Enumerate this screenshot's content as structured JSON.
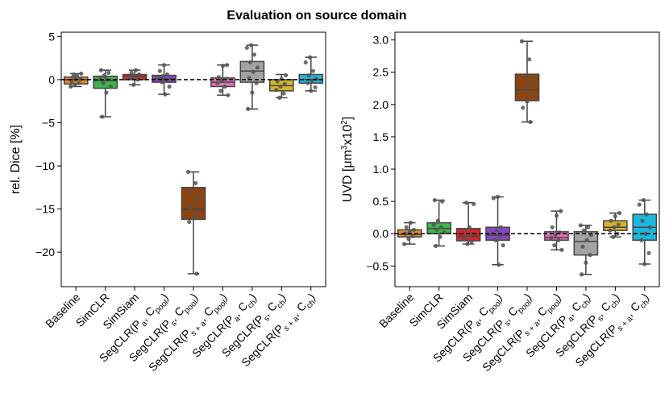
{
  "figure": {
    "title": "Evaluation on source domain",
    "colors": {
      "Baseline": "#e08a2c",
      "SimCLR": "#3db64a",
      "SimSiam": "#d9242a",
      "SegCLR(Pa,Cpool)": "#8a45c4",
      "SegCLR(Ps,Cpool)": "#8c4410",
      "SegCLR(Ps+a,Cpool)": "#e56fb8",
      "SegCLR(Pa,Cch)": "#a3a3a3",
      "SegCLR(Ps,Cch)": "#d6b42a",
      "SegCLR(Ps+a,Cch)": "#1cb7dd"
    }
  },
  "chart_data": [
    {
      "type": "boxplot",
      "title": "",
      "xlabel": "",
      "ylabel": "rel. Dice [%]",
      "ylim": [
        -24,
        5.5
      ],
      "yticks": [
        5,
        0,
        -5,
        -10,
        -15,
        -20
      ],
      "ytick_labels": [
        "5",
        "0",
        "−5",
        "−10",
        "−15",
        "−20"
      ],
      "reference_line": 0,
      "categories": [
        {
          "base": "Baseline",
          "sub": ""
        },
        {
          "base": "SimCLR",
          "sub": ""
        },
        {
          "base": "SimSiam",
          "sub": ""
        },
        {
          "base": "SegCLR(P",
          "sub1": "a",
          "mid": ", C",
          "sub2": "pool",
          "end": ")"
        },
        {
          "base": "SegCLR(P",
          "sub1": "s",
          "mid": ", C",
          "sub2": "pool",
          "end": ")"
        },
        {
          "base": "SegCLR(P",
          "sub1": "s + a",
          "mid": ", C",
          "sub2": "pool",
          "end": ")"
        },
        {
          "base": "SegCLR(P",
          "sub1": "a",
          "mid": ", C",
          "sub2": "ch",
          "end": ")"
        },
        {
          "base": "SegCLR(P",
          "sub1": "s",
          "mid": ", C",
          "sub2": "ch",
          "end": ")"
        },
        {
          "base": "SegCLR(P",
          "sub1": "s + a",
          "mid": ", C",
          "sub2": "ch",
          "end": ")"
        }
      ],
      "series": [
        {
          "name": "Baseline",
          "whisker_low": -0.8,
          "q1": -0.5,
          "median": 0.0,
          "q3": 0.3,
          "whisker_high": 0.7,
          "points": [
            -0.8,
            -0.6,
            -0.4,
            -0.2,
            0.0,
            0.1,
            0.3,
            0.5,
            0.7,
            0.6
          ]
        },
        {
          "name": "SimCLR",
          "whisker_low": -4.3,
          "q1": -1.0,
          "median": -0.1,
          "q3": 0.4,
          "whisker_high": 1.1,
          "points": [
            -4.3,
            -1.5,
            -0.8,
            -0.4,
            0.0,
            0.2,
            0.5,
            0.8,
            1.1,
            0.3
          ]
        },
        {
          "name": "SimSiam",
          "whisker_low": -0.6,
          "q1": 0.0,
          "median": 0.4,
          "q3": 0.6,
          "whisker_high": 1.1,
          "points": [
            -0.6,
            0.0,
            0.2,
            0.4,
            0.6,
            0.8,
            1.1,
            0.5,
            0.3
          ]
        },
        {
          "name": "SegCLR(Pa,Cpool)",
          "whisker_low": -1.7,
          "q1": -0.3,
          "median": 0.1,
          "q3": 0.5,
          "whisker_high": 1.7,
          "points": [
            -1.7,
            -0.8,
            -0.3,
            0.0,
            0.2,
            0.4,
            0.6,
            1.0,
            1.7
          ]
        },
        {
          "name": "SegCLR(Ps,Cpool)",
          "whisker_low": -22.5,
          "q1": -16.2,
          "median": -15.0,
          "q3": -12.5,
          "whisker_high": -10.7,
          "points": [
            -22.5,
            -16.5,
            -16.0,
            -15.5,
            -14.8,
            -14.0,
            -13.5,
            -13.0,
            -12.0,
            -10.7
          ]
        },
        {
          "name": "SegCLR(Ps+a,Cpool)",
          "whisker_low": -1.8,
          "q1": -0.8,
          "median": -0.3,
          "q3": 0.2,
          "whisker_high": 1.7,
          "points": [
            -1.8,
            -1.3,
            -0.8,
            -0.4,
            -0.1,
            0.1,
            0.3,
            1.6,
            1.7
          ]
        },
        {
          "name": "SegCLR(Pa,Cch)",
          "whisker_low": -3.4,
          "q1": -0.3,
          "median": 1.0,
          "q3": 2.1,
          "whisker_high": 4.0,
          "points": [
            -3.4,
            -1.5,
            -0.4,
            0.2,
            0.9,
            1.4,
            2.0,
            2.9,
            3.7,
            4.0
          ]
        },
        {
          "name": "SegCLR(Ps,Cch)",
          "whisker_low": -2.1,
          "q1": -1.3,
          "median": -0.7,
          "q3": 0.0,
          "whisker_high": 0.6,
          "points": [
            -2.1,
            -1.6,
            -1.2,
            -0.8,
            -0.5,
            -0.2,
            0.1,
            0.5
          ]
        },
        {
          "name": "SegCLR(Ps+a,Cch)",
          "whisker_low": -1.3,
          "q1": -0.4,
          "median": 0.0,
          "q3": 0.6,
          "whisker_high": 2.6,
          "points": [
            -1.3,
            -0.9,
            -0.4,
            -0.1,
            0.1,
            0.5,
            1.0,
            2.0,
            2.6
          ]
        }
      ]
    },
    {
      "type": "boxplot",
      "title": "",
      "xlabel": "",
      "ylabel_parts": [
        "UVD [μm",
        "3",
        "x10",
        "2",
        "]"
      ],
      "ylim": [
        -0.82,
        3.12
      ],
      "yticks": [
        3.0,
        2.5,
        2.0,
        1.5,
        1.0,
        0.5,
        0.0,
        -0.5
      ],
      "ytick_labels": [
        "3.0",
        "2.5",
        "2.0",
        "1.5",
        "1.0",
        "0.5",
        "0.0",
        "−0.5"
      ],
      "reference_line": 0,
      "categories": [
        {
          "base": "Baseline",
          "sub": ""
        },
        {
          "base": "SimCLR",
          "sub": ""
        },
        {
          "base": "SimSiam",
          "sub": ""
        },
        {
          "base": "SegCLR(P",
          "sub1": "a",
          "mid": ", C",
          "sub2": "pool",
          "end": ")"
        },
        {
          "base": "SegCLR(P",
          "sub1": "s",
          "mid": ", C",
          "sub2": "pool",
          "end": ")"
        },
        {
          "base": "SegCLR(P",
          "sub1": "s + a",
          "mid": ", C",
          "sub2": "pool",
          "end": ")"
        },
        {
          "base": "SegCLR(P",
          "sub1": "a",
          "mid": ", C",
          "sub2": "ch",
          "end": ")"
        },
        {
          "base": "SegCLR(P",
          "sub1": "s",
          "mid": ", C",
          "sub2": "ch",
          "end": ")"
        },
        {
          "base": "SegCLR(P",
          "sub1": "s + a",
          "mid": ", C",
          "sub2": "ch",
          "end": ")"
        }
      ],
      "series": [
        {
          "name": "Baseline",
          "whisker_low": -0.16,
          "q1": -0.05,
          "median": -0.01,
          "q3": 0.06,
          "whisker_high": 0.17,
          "points": [
            -0.16,
            -0.08,
            -0.04,
            0.0,
            0.03,
            0.06,
            0.1,
            0.17
          ]
        },
        {
          "name": "SimCLR",
          "whisker_low": -0.19,
          "q1": 0.0,
          "median": 0.08,
          "q3": 0.17,
          "whisker_high": 0.52,
          "points": [
            -0.19,
            -0.05,
            0.02,
            0.06,
            0.1,
            0.14,
            0.2,
            0.5,
            0.52
          ]
        },
        {
          "name": "SimSiam",
          "whisker_low": -0.16,
          "q1": -0.11,
          "median": -0.04,
          "q3": 0.08,
          "whisker_high": 0.48,
          "points": [
            -0.16,
            -0.12,
            -0.08,
            -0.03,
            0.0,
            0.06,
            0.1,
            0.46,
            0.48
          ]
        },
        {
          "name": "SegCLR(Pa,Cpool)",
          "whisker_low": -0.48,
          "q1": -0.1,
          "median": -0.02,
          "q3": 0.1,
          "whisker_high": 0.57,
          "points": [
            -0.48,
            -0.18,
            -0.1,
            -0.04,
            0.0,
            0.05,
            0.1,
            0.55,
            0.57
          ]
        },
        {
          "name": "SegCLR(Ps,Cpool)",
          "whisker_low": 1.73,
          "q1": 2.06,
          "median": 2.23,
          "q3": 2.47,
          "whisker_high": 2.98,
          "points": [
            1.73,
            1.95,
            2.05,
            2.15,
            2.22,
            2.3,
            2.38,
            2.45,
            2.7,
            2.98
          ]
        },
        {
          "name": "SegCLR(Ps+a,Cpool)",
          "whisker_low": -0.25,
          "q1": -0.1,
          "median": -0.06,
          "q3": 0.03,
          "whisker_high": 0.35,
          "points": [
            -0.25,
            -0.18,
            -0.1,
            -0.06,
            -0.02,
            0.02,
            0.1,
            0.28,
            0.35
          ]
        },
        {
          "name": "SegCLR(Pa,Cch)",
          "whisker_low": -0.63,
          "q1": -0.33,
          "median": -0.12,
          "q3": 0.03,
          "whisker_high": 0.13,
          "points": [
            -0.63,
            -0.45,
            -0.33,
            -0.2,
            -0.1,
            -0.02,
            0.05,
            0.1,
            0.13
          ]
        },
        {
          "name": "SegCLR(Ps,Cch)",
          "whisker_low": -0.05,
          "q1": 0.05,
          "median": 0.1,
          "q3": 0.2,
          "whisker_high": 0.32,
          "points": [
            -0.05,
            0.0,
            0.05,
            0.1,
            0.14,
            0.2,
            0.27,
            0.32
          ]
        },
        {
          "name": "SegCLR(Ps+a,Cch)",
          "whisker_low": -0.47,
          "q1": -0.1,
          "median": 0.1,
          "q3": 0.3,
          "whisker_high": 0.52,
          "points": [
            -0.47,
            -0.3,
            -0.1,
            0.0,
            0.1,
            0.2,
            0.3,
            0.45,
            0.52
          ]
        }
      ]
    }
  ]
}
